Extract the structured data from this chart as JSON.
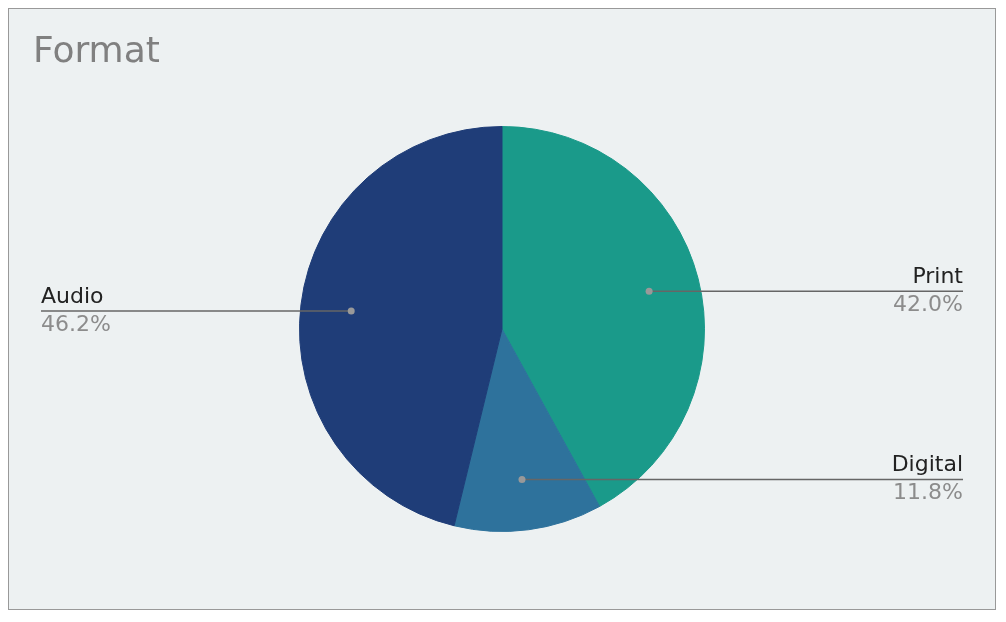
{
  "chart_data": {
    "type": "pie",
    "title": "Format",
    "categories": [
      "Print",
      "Digital",
      "Audio"
    ],
    "values": [
      42.0,
      11.8,
      46.2
    ],
    "colors": [
      "#1a9a8a",
      "#2e729c",
      "#1f3d78"
    ],
    "value_labels": [
      "42.0%",
      "11.8%",
      "46.2%"
    ],
    "legend": false
  }
}
